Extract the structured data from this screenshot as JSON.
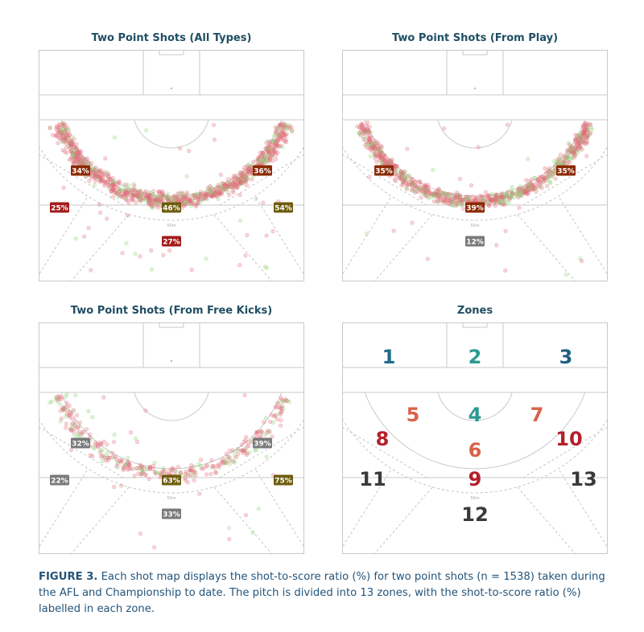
{
  "colors": {
    "pitch_line": "#c9c9c9",
    "dash_line": "#c4c4c4",
    "title": "#1f4e63",
    "caption": "#23547a",
    "label_brown": "#8b2a06",
    "label_red": "#a31b1b",
    "label_olive": "#6f5c0d",
    "label_grey": "#7a7a7a",
    "shot_red": "#e36b7a",
    "shot_green": "#8fd27a"
  },
  "caption": {
    "label": "FIGURE 3.",
    "text": " Each shot map displays the shot-to-score ratio (%) for two point shots (n = 1538) taken during the AFL and Championship to date. The pitch is divided into 13 zones, with the shot-to-score ratio (%) labelled in each zone."
  },
  "pitch_mark": "50m",
  "chart_data": [
    {
      "type": "scatter",
      "title": "Two Point Shots (All Types)",
      "density": "high",
      "zone_ratios": [
        {
          "zone": 5,
          "label": "34%",
          "value": 34,
          "color": "brown"
        },
        {
          "zone": 7,
          "label": "36%",
          "value": 36,
          "color": "brown"
        },
        {
          "zone": 11,
          "label": "25%",
          "value": 25,
          "color": "red"
        },
        {
          "zone": 9,
          "label": "46%",
          "value": 46,
          "color": "olive"
        },
        {
          "zone": 13,
          "label": "54%",
          "value": 54,
          "color": "olive"
        },
        {
          "zone": 12,
          "label": "27%",
          "value": 27,
          "color": "red"
        }
      ]
    },
    {
      "type": "scatter",
      "title": "Two Point Shots (From Play)",
      "density": "high",
      "zone_ratios": [
        {
          "zone": 5,
          "label": "35%",
          "value": 35,
          "color": "brown"
        },
        {
          "zone": 7,
          "label": "35%",
          "value": 35,
          "color": "brown"
        },
        {
          "zone": 9,
          "label": "39%",
          "value": 39,
          "color": "brown"
        },
        {
          "zone": 12,
          "label": "12%",
          "value": 12,
          "color": "grey"
        }
      ]
    },
    {
      "type": "scatter",
      "title": "Two Point Shots (From Free Kicks)",
      "density": "low",
      "zone_ratios": [
        {
          "zone": 5,
          "label": "32%",
          "value": 32,
          "color": "grey"
        },
        {
          "zone": 7,
          "label": "39%",
          "value": 39,
          "color": "grey"
        },
        {
          "zone": 11,
          "label": "22%",
          "value": 22,
          "color": "grey"
        },
        {
          "zone": 9,
          "label": "63%",
          "value": 63,
          "color": "olive"
        },
        {
          "zone": 13,
          "label": "75%",
          "value": 75,
          "color": "olive"
        },
        {
          "zone": 12,
          "label": "33%",
          "value": 33,
          "color": "grey"
        }
      ]
    },
    {
      "type": "zones",
      "title": "Zones",
      "zones": [
        {
          "id": 1,
          "label": "1",
          "color": "#1f6b8a"
        },
        {
          "id": 2,
          "label": "2",
          "color": "#2a9b93"
        },
        {
          "id": 3,
          "label": "3",
          "color": "#1f5f80"
        },
        {
          "id": 4,
          "label": "4",
          "color": "#2a9b93"
        },
        {
          "id": 5,
          "label": "5",
          "color": "#d9624a"
        },
        {
          "id": 6,
          "label": "6",
          "color": "#d9624a"
        },
        {
          "id": 7,
          "label": "7",
          "color": "#d9624a"
        },
        {
          "id": 8,
          "label": "8",
          "color": "#b51f2a"
        },
        {
          "id": 9,
          "label": "9",
          "color": "#b51f2a"
        },
        {
          "id": 10,
          "label": "10",
          "color": "#b51f2a"
        },
        {
          "id": 11,
          "label": "11",
          "color": "#3a3a3a"
        },
        {
          "id": 12,
          "label": "12",
          "color": "#3a3a3a"
        },
        {
          "id": 13,
          "label": "13",
          "color": "#3a3a3a"
        }
      ]
    }
  ]
}
